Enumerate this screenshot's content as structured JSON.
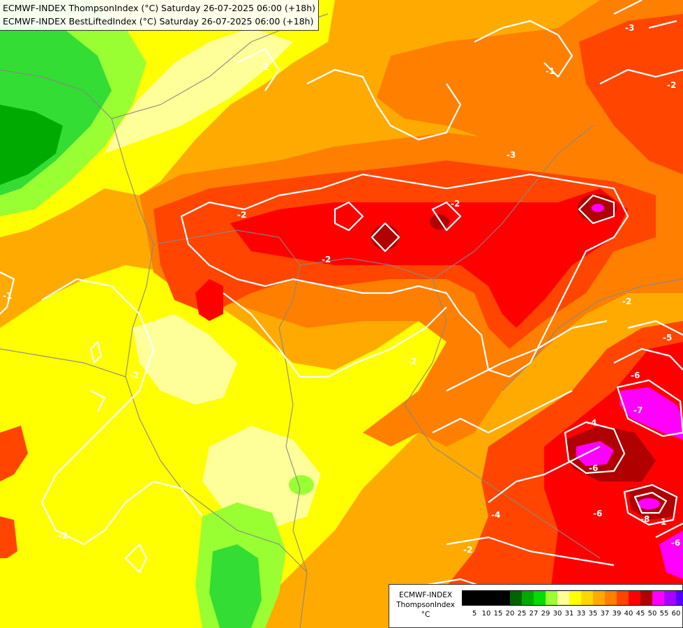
{
  "header": {
    "line1": "ECMWF-INDEX ThompsonIndex (°C) Saturday 26-07-2025 06:00 (+18h)",
    "line2": "ECMWF-INDEX BestLiftedIndex (°C) Saturday 26-07-2025 06:00 (+18h)"
  },
  "legend": {
    "title_line1": "ECMWF-INDEX",
    "title_line2": "ThompsonIndex",
    "unit": "°C",
    "colors": [
      "#000000",
      "#000000",
      "#000000",
      "#000000",
      "#006400",
      "#00aa00",
      "#00dd00",
      "#99ff33",
      "#ffff99",
      "#ffff00",
      "#ffd700",
      "#ffaa00",
      "#ff7f00",
      "#ff4500",
      "#ff0000",
      "#b00000",
      "#ff00ff",
      "#aa00ff",
      "#5500ff",
      "#0000ff"
    ],
    "ticks": [
      "5",
      "10",
      "15",
      "20",
      "25",
      "27",
      "29",
      "30",
      "31",
      "33",
      "35",
      "37",
      "39",
      "40",
      "45",
      "50",
      "55",
      "60"
    ]
  },
  "contour_labels": [
    "-2",
    "-2",
    "-2",
    "-2",
    "-2",
    "-2",
    "-3",
    "-3",
    "-1",
    "-1",
    "-1",
    "-2",
    "-4",
    "-5",
    "-6",
    "-6",
    "-6",
    "-7",
    "-8",
    "-6",
    "-4",
    "-2",
    "-2",
    "-2"
  ]
}
